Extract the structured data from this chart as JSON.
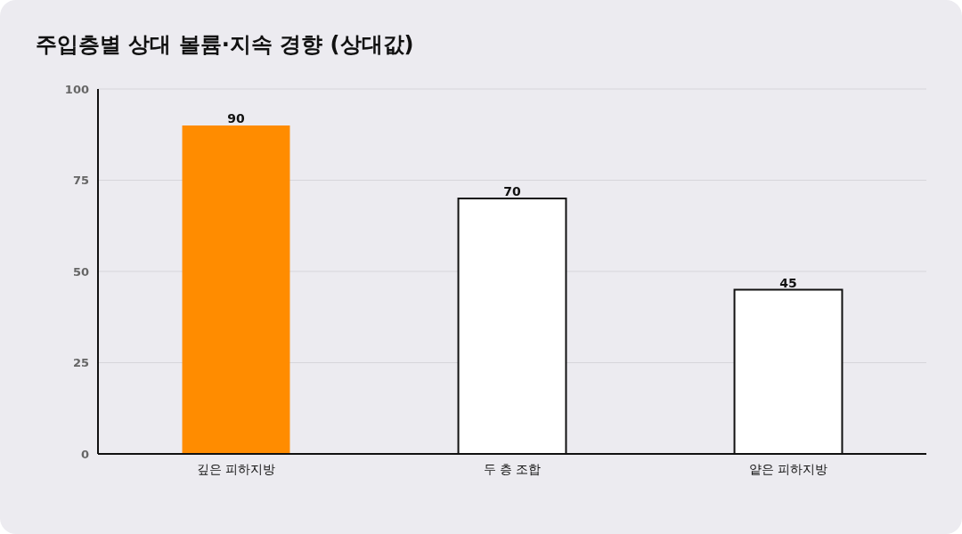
{
  "chart_data": {
    "type": "bar",
    "title": "주입층별 상대 볼륨·지속 경향 (상대값)",
    "categories": [
      "깊은 피하지방",
      "두 층 조합",
      "얕은 피하지방"
    ],
    "values": [
      90,
      70,
      45
    ],
    "colors": [
      "#ff8c00",
      "#ffffff",
      "#ffffff"
    ],
    "ylim": [
      0,
      100
    ],
    "yticks": [
      0,
      25,
      50,
      75,
      100
    ],
    "grid": "y",
    "data_labels": true
  }
}
